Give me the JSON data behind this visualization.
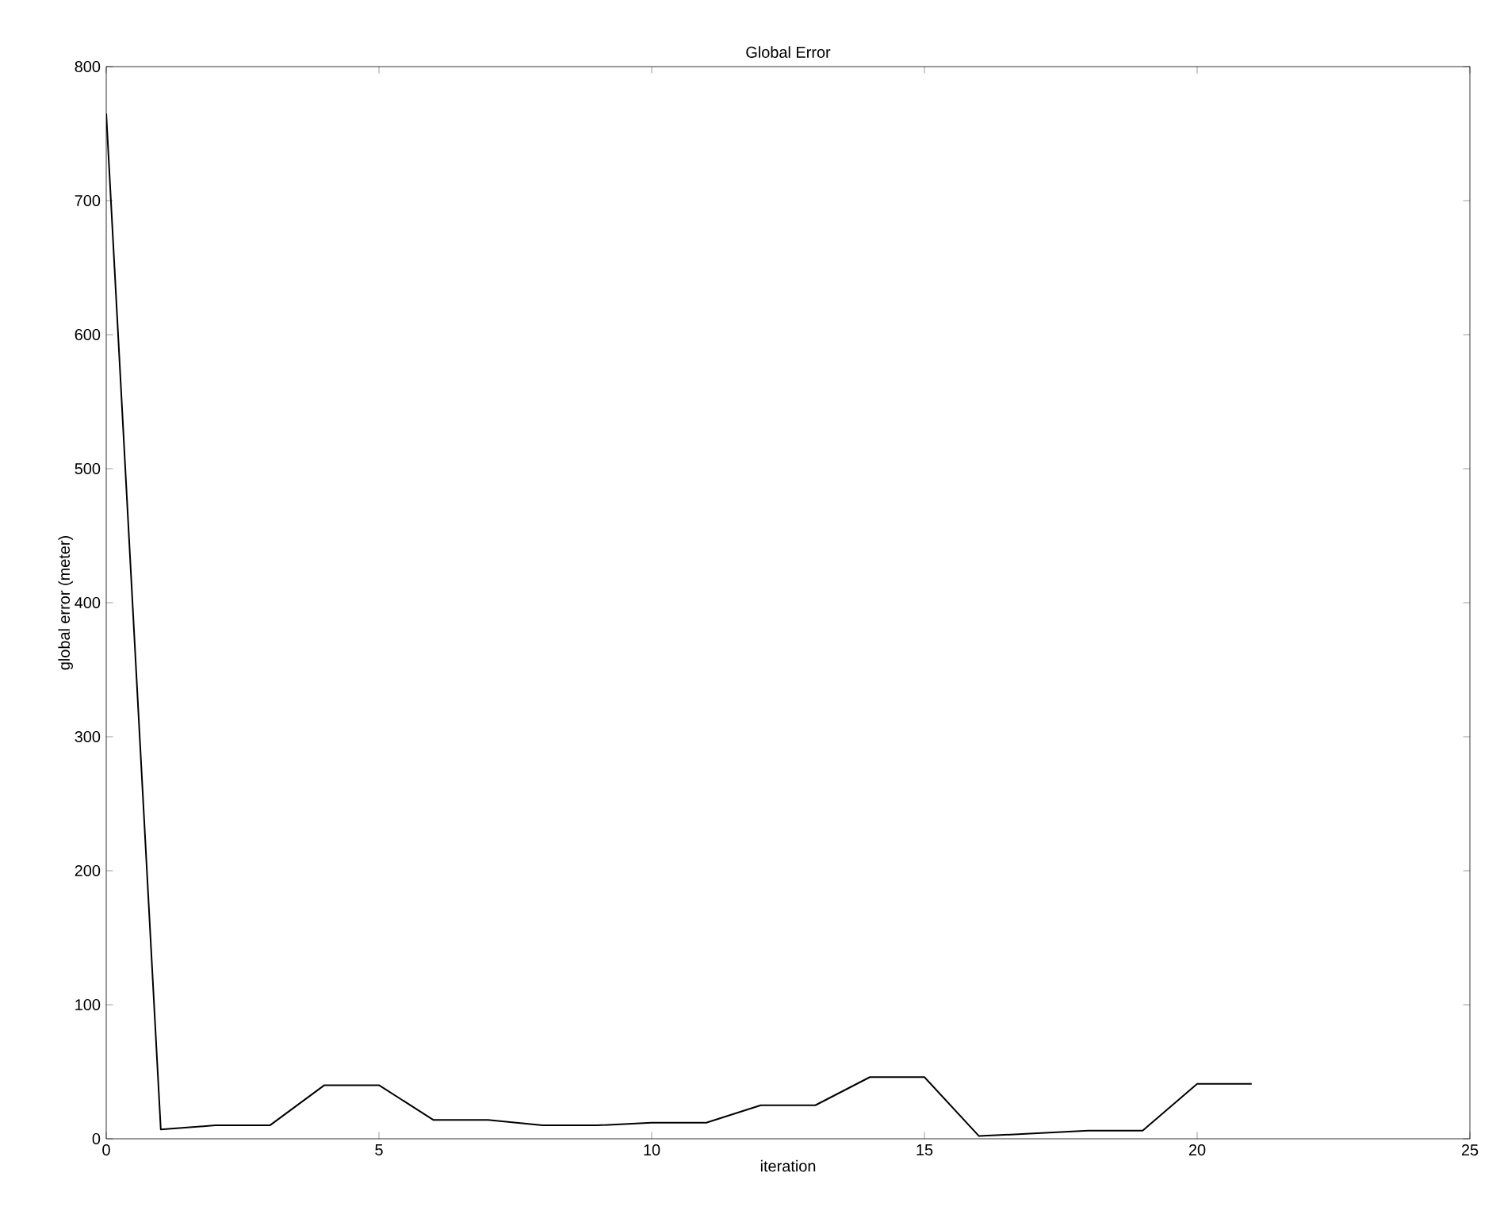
{
  "chart_data": {
    "type": "line",
    "title": "Global Error",
    "xlabel": "iteration",
    "ylabel": "global error (meter)",
    "x": [
      0,
      1,
      2,
      3,
      4,
      5,
      6,
      7,
      8,
      9,
      10,
      11,
      12,
      13,
      14,
      15,
      16,
      17,
      18,
      19,
      20,
      21
    ],
    "series": [
      {
        "color": "#000000",
        "values": [
          765,
          7,
          10,
          10,
          40,
          40,
          14,
          14,
          10,
          10,
          12,
          12,
          25,
          25,
          46,
          46,
          2,
          4,
          6,
          6,
          41,
          41
        ]
      }
    ],
    "xlim": [
      0,
      25
    ],
    "xticks": [
      0,
      5,
      10,
      15,
      20,
      25
    ],
    "ylim": [
      0,
      800
    ],
    "yticks": [
      0,
      100,
      200,
      300,
      400,
      500,
      600,
      700,
      800
    ],
    "grid": false,
    "marker": "none",
    "line_style": "solid"
  }
}
